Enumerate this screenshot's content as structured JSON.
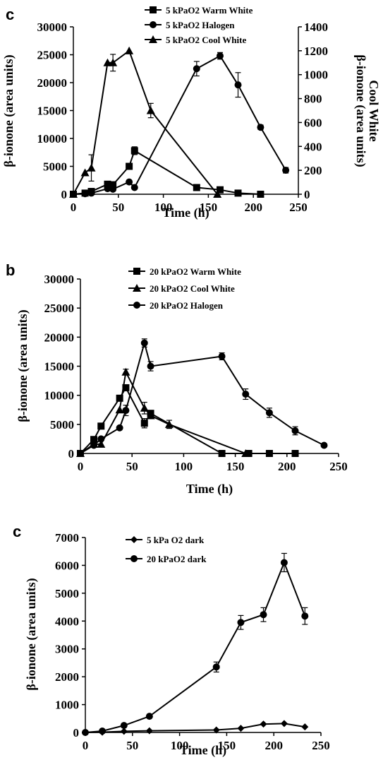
{
  "chart_data": [
    {
      "type": "line",
      "panel_label": "c",
      "xlabel": "Time (h)",
      "ylabel": "β-ionone (area units)",
      "y2label": "β-ionone (area units)",
      "y2label_line2": "Cool White",
      "xlim": [
        0,
        250
      ],
      "ylim": [
        0,
        30000
      ],
      "y2lim": [
        0,
        1400
      ],
      "x_ticks": [
        "0",
        "50",
        "100",
        "150",
        "200",
        "250"
      ],
      "y_ticks": [
        "0",
        "5000",
        "10000",
        "15000",
        "20000",
        "25000",
        "30000"
      ],
      "y2_ticks": [
        "0",
        "200",
        "400",
        "600",
        "800",
        "1000",
        "1200",
        "1400"
      ],
      "legend_position": "top",
      "series": [
        {
          "name": "5 kPaO2 Warm White",
          "marker": "square",
          "axis": "left",
          "x": [
            0,
            13,
            20,
            38,
            44,
            62,
            68,
            137,
            163,
            183,
            208
          ],
          "y": [
            0,
            200,
            500,
            1800,
            1700,
            5000,
            7800,
            1200,
            800,
            200,
            0
          ],
          "err": [
            0,
            0,
            0,
            0,
            0,
            500,
            700,
            0,
            0,
            0,
            0
          ]
        },
        {
          "name": "5 kPaO2 Halogen",
          "marker": "circle",
          "axis": "left",
          "x": [
            0,
            13,
            20,
            38,
            44,
            62,
            68,
            137,
            163,
            183,
            208,
            236
          ],
          "y": [
            0,
            100,
            200,
            1000,
            900,
            2200,
            1200,
            22500,
            24800,
            19600,
            12000,
            4300
          ],
          "err": [
            0,
            0,
            0,
            0,
            0,
            0,
            0,
            1300,
            600,
            2200,
            400,
            500
          ]
        },
        {
          "name": "5 kPaO2 Cool White",
          "marker": "triangle",
          "axis": "right",
          "x": [
            0,
            13,
            20,
            38,
            44,
            62,
            86,
            160
          ],
          "y": [
            0,
            180,
            220,
            1100,
            1100,
            1200,
            700,
            0
          ],
          "err": [
            0,
            0,
            110,
            0,
            70,
            0,
            60,
            0
          ]
        }
      ]
    },
    {
      "type": "line",
      "panel_label": "b",
      "xlabel": "Time (h)",
      "ylabel": "β-ionone (area units)",
      "xlim": [
        0,
        250
      ],
      "ylim": [
        0,
        30000
      ],
      "x_ticks": [
        "0",
        "50",
        "100",
        "150",
        "200",
        "250"
      ],
      "y_ticks": [
        "0",
        "5000",
        "10000",
        "15000",
        "20000",
        "25000",
        "30000"
      ],
      "legend_position": "top",
      "series": [
        {
          "name": "20 kPaO2 Warm White",
          "marker": "square",
          "x": [
            0,
            13,
            20,
            38,
            44,
            62,
            68,
            137,
            163,
            183,
            208
          ],
          "y": [
            0,
            2400,
            4700,
            9500,
            11300,
            5200,
            6900,
            0,
            0,
            0,
            0
          ],
          "err": [
            0,
            0,
            0,
            0,
            0,
            800,
            0,
            0,
            0,
            0,
            0
          ]
        },
        {
          "name": "20 kPaO2 Cool White",
          "marker": "triangle",
          "x": [
            0,
            13,
            20,
            38,
            44,
            62,
            68,
            86,
            160
          ],
          "y": [
            0,
            1600,
            1600,
            7500,
            14000,
            7800,
            6500,
            5000,
            0
          ],
          "err": [
            0,
            0,
            0,
            0,
            500,
            1000,
            0,
            700,
            0
          ]
        },
        {
          "name": "20 kPaO2 Halogen",
          "marker": "circle",
          "x": [
            0,
            13,
            20,
            38,
            44,
            62,
            68,
            137,
            160,
            183,
            208,
            236
          ],
          "y": [
            0,
            1400,
            2500,
            4400,
            7400,
            19000,
            15000,
            16700,
            10200,
            7000,
            3900,
            1400
          ],
          "err": [
            0,
            0,
            0,
            0,
            900,
            700,
            800,
            600,
            900,
            800,
            700,
            0
          ]
        }
      ]
    },
    {
      "type": "line",
      "panel_label": "c",
      "xlabel": "Time (h)",
      "ylabel": "β-ionone (area units)",
      "xlim": [
        0,
        250
      ],
      "ylim": [
        0,
        7000
      ],
      "x_ticks": [
        "0",
        "50",
        "100",
        "150",
        "200",
        "250"
      ],
      "y_ticks": [
        "0",
        "1000",
        "2000",
        "3000",
        "4000",
        "5000",
        "6000",
        "7000"
      ],
      "legend_position": "top-left",
      "series": [
        {
          "name": "5 kPa O2 dark",
          "marker": "diamond",
          "x": [
            0,
            18,
            41,
            68,
            139,
            165,
            189,
            211,
            233
          ],
          "y": [
            0,
            10,
            40,
            60,
            90,
            150,
            300,
            320,
            200
          ],
          "err": [
            0,
            0,
            0,
            0,
            0,
            0,
            0,
            0,
            0
          ]
        },
        {
          "name": "20 kPaO2 dark",
          "marker": "circle",
          "x": [
            0,
            18,
            41,
            68,
            139,
            165,
            189,
            211,
            233
          ],
          "y": [
            0,
            50,
            250,
            580,
            2350,
            3950,
            4230,
            6100,
            4180
          ],
          "err": [
            0,
            0,
            0,
            0,
            180,
            250,
            250,
            330,
            300
          ]
        }
      ]
    }
  ]
}
